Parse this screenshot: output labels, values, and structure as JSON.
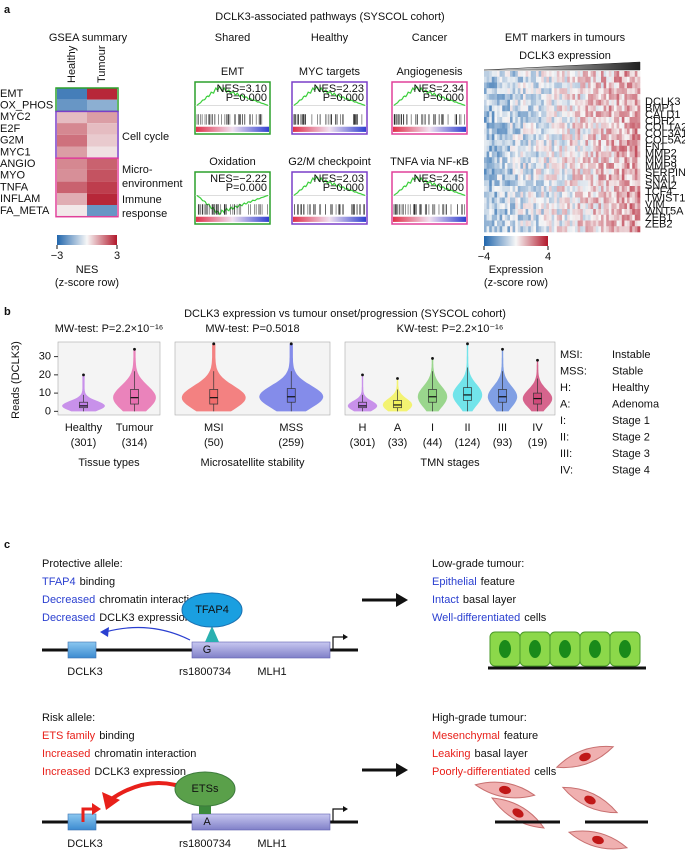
{
  "panel_labels": [
    "a",
    "b",
    "c"
  ],
  "panel_a": {
    "gsea_summary": {
      "title": "GSEA summary",
      "columns": [
        "Healthy",
        "Tumour"
      ],
      "column_colors": [
        "#7a3fc9",
        "#e0409a"
      ],
      "groups": [
        {
          "color": "#2ca02c",
          "rows": [
            "EMT",
            "OX_PHOS"
          ],
          "values": [
            [
              -2.5,
              2.8
            ],
            [
              -2.0,
              -1.5
            ]
          ],
          "label": []
        },
        {
          "color": "#7a3fc9",
          "rows": [
            "MYC2",
            "E2F",
            "G2M",
            "MYC1"
          ],
          "values": [
            [
              0.8,
              1.2
            ],
            [
              1.5,
              0.8
            ],
            [
              1.8,
              0.6
            ],
            [
              1.2,
              0.3
            ]
          ],
          "label": [
            "Cell cycle"
          ]
        },
        {
          "color": "#e0409a",
          "rows": [
            "ANGIO",
            "MYO",
            "TNFA",
            "INFLAM",
            "FA_META"
          ],
          "values": [
            [
              1.5,
              2.0
            ],
            [
              1.4,
              2.2
            ],
            [
              2.0,
              2.5
            ],
            [
              1.0,
              2.8
            ],
            [
              0.2,
              -2.0
            ]
          ],
          "label": [
            "Micro-",
            "environment",
            "Immune",
            "response"
          ]
        }
      ],
      "colorbar": {
        "lim": [
          -3,
          3
        ],
        "ticks": [
          {
            "value": -3,
            "label": "−3"
          },
          3
        ],
        "title": [
          "NES",
          "(z-score row)"
        ]
      }
    },
    "pathways": {
      "title": "DCLK3-associated pathways (SYSCOL cohort)",
      "curve_color": "#3ccf3c",
      "columns": [
        {
          "name": "Shared",
          "color": "#2ca02c",
          "panels": [
            {
              "name": "EMT",
              "nes": {
                "value": 3.1,
                "label": "NES=3.10"
              },
              "p": "P=0.000"
            },
            {
              "name": "Oxidation",
              "nes": {
                "value": -2.22,
                "label": "NES=−2.22"
              },
              "p": "P=0.000"
            }
          ]
        },
        {
          "name": "Healthy",
          "color": "#7a3fc9",
          "panels": [
            {
              "name": "MYC targets",
              "nes": {
                "value": 2.23,
                "label": "NES=2.23"
              },
              "p": "P=0.000"
            },
            {
              "name": "G2/M checkpoint",
              "nes": {
                "value": 2.03,
                "label": "NES=2.03"
              },
              "p": "P=0.000"
            }
          ]
        },
        {
          "name": "Cancer",
          "color": "#e0409a",
          "panels": [
            {
              "name": "Angiogenesis",
              "nes": {
                "value": 2.34,
                "label": "NES=2.34"
              },
              "p": "P=0.000"
            },
            {
              "name": "TNFA via NF-κB",
              "nes": {
                "value": 2.45,
                "label": "NES=2.45"
              },
              "p": "P=0.000"
            }
          ]
        }
      ]
    },
    "emt_markers": {
      "title": "EMT markers in tumours",
      "axis_label": "DCLK3 expression",
      "genes": [
        "DCLK3",
        "BMP1",
        "CALD1",
        "CDH2",
        "COL1A2",
        "COL3A1",
        "COL5A2",
        "FN1",
        "MMP2",
        "MMP3",
        "MMP9",
        "SERPINE1",
        "SNAI1",
        "SNAI2",
        "TCF4",
        "TWIST1",
        "VIM",
        "WNT5A",
        "ZEB1",
        "ZEB2"
      ],
      "highlight_color": "#e8302a",
      "colorbar": {
        "lim": [
          -4,
          4
        ],
        "ticks": [
          {
            "value": -4,
            "label": "−4"
          },
          4
        ],
        "title": [
          "Expression",
          "(z-score row)"
        ]
      }
    }
  },
  "panel_b": {
    "title": "DCLK3 expression vs tumour onset/progression (SYSCOL cohort)",
    "y_label": "Reads (DCLK3)",
    "legend": [
      [
        "MSI:",
        "Instable"
      ],
      [
        "MSS:",
        "Stable"
      ],
      [
        "H:",
        "Healthy"
      ],
      [
        "A:",
        "Adenoma"
      ],
      [
        "I:",
        "Stage 1"
      ],
      [
        "II:",
        "Stage 2"
      ],
      [
        "III:",
        "Stage 3"
      ],
      [
        "IV:",
        "Stage 4"
      ]
    ]
  },
  "chart_data": [
    {
      "type": "violin",
      "title": "MW-test: P=2.2×10⁻¹⁶",
      "x_label": "Tissue types",
      "categories": [
        "Healthy",
        "Tumour"
      ],
      "sample_labels": [
        "(301)",
        "(314)"
      ],
      "colors": [
        "#c07fe8",
        "#e86fb0"
      ],
      "ylim": [
        -2,
        38
      ],
      "yticks": [
        0,
        10,
        20,
        30
      ],
      "median": [
        3,
        7.5
      ],
      "q1": [
        2,
        4
      ],
      "q3": [
        5,
        12
      ],
      "whisker_low": [
        0,
        0
      ],
      "whisker_high": [
        9,
        22
      ],
      "max": [
        20,
        34
      ]
    },
    {
      "type": "violin",
      "title": "MW-test: P=0.5018",
      "x_label": "Microsatellite stability",
      "categories": [
        "MSI",
        "MSS"
      ],
      "sample_labels": [
        "(50)",
        "(259)"
      ],
      "colors": [
        "#f26c6c",
        "#7079e8"
      ],
      "ylim": [
        -2,
        38
      ],
      "median": [
        7.5,
        8
      ],
      "q1": [
        4,
        5
      ],
      "q3": [
        12,
        12.5
      ],
      "whisker_low": [
        0,
        0
      ],
      "whisker_high": [
        22,
        22
      ],
      "max": [
        37,
        37
      ]
    },
    {
      "type": "violin",
      "title": "KW-test: P=2.2×10⁻¹⁶",
      "x_label": "TMN stages",
      "categories": [
        "H",
        "A",
        "I",
        "II",
        "III",
        "IV"
      ],
      "sample_labels": [
        "(301)",
        "(33)",
        "(44)",
        "(124)",
        "(93)",
        "(19)"
      ],
      "colors": [
        "#c07fe8",
        "#f2f25a",
        "#8ad07a",
        "#5ae0e8",
        "#6b8fe0",
        "#d04a7a"
      ],
      "ylim": [
        -2,
        38
      ],
      "median": [
        3,
        3.5,
        8,
        9,
        8,
        7
      ],
      "q1": [
        2,
        2,
        5,
        6,
        5,
        4
      ],
      "q3": [
        5,
        6,
        12,
        13,
        12,
        10
      ],
      "whisker_low": [
        0,
        0,
        0,
        0,
        0,
        0
      ],
      "whisker_high": [
        9,
        12,
        22,
        24,
        22,
        18
      ],
      "max": [
        20,
        18,
        29,
        37,
        34,
        28
      ]
    }
  ],
  "panel_c": {
    "protective": {
      "title": "Protective allele:",
      "color": "#2a3fd0",
      "lines": [
        {
          "highlight": "TFAP4",
          "text": "binding"
        },
        {
          "highlight": "Decreased",
          "text": "chromatin interaction"
        },
        {
          "highlight": "Decreased",
          "text": "DCLK3 expression"
        }
      ],
      "factor": "TFAP4",
      "allele": "G",
      "snp": "rs1800734",
      "genes": [
        "DCLK3",
        "MLH1"
      ]
    },
    "low_grade": {
      "title": "Low-grade tumour:",
      "color": "#2a3fd0",
      "lines": [
        {
          "highlight": "Epithelial",
          "text": "feature"
        },
        {
          "highlight": "Intact",
          "text": "basal layer"
        },
        {
          "highlight": "Well-differentiated",
          "text": "cells"
        }
      ]
    },
    "risk": {
      "title": "Risk allele:",
      "color": "#e8201a",
      "lines": [
        {
          "highlight": "ETS family",
          "text": "binding"
        },
        {
          "highlight": "Increased",
          "text": "chromatin interaction"
        },
        {
          "highlight": "Increased",
          "text": "DCLK3 expression"
        }
      ],
      "factor": "ETSs",
      "allele": "A",
      "snp": "rs1800734",
      "genes": [
        "DCLK3",
        "MLH1"
      ]
    },
    "high_grade": {
      "title": "High-grade tumour:",
      "color": "#e8201a",
      "lines": [
        {
          "highlight": "Mesenchymal",
          "text": "feature"
        },
        {
          "highlight": "Leaking",
          "text": "basal layer"
        },
        {
          "highlight": "Poorly-differentiated",
          "text": "cells"
        }
      ]
    }
  }
}
